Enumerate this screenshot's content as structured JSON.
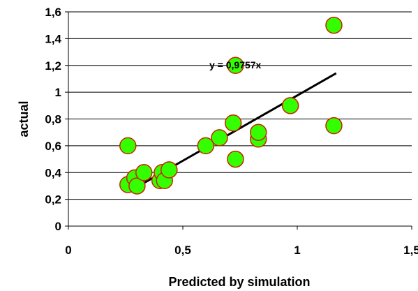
{
  "chart_data": {
    "type": "scatter",
    "xlabel": "Predicted by simulation",
    "ylabel": "actual",
    "xlim": [
      0,
      1.5
    ],
    "ylim": [
      0,
      1.6
    ],
    "x_ticks": [
      "0",
      "0,5",
      "1",
      "1,5"
    ],
    "y_ticks": [
      "0",
      "0,2",
      "0,4",
      "0,6",
      "0,8",
      "1",
      "1,2",
      "1,4",
      "1,6"
    ],
    "grid": "horizontal",
    "points": [
      {
        "x": 0.26,
        "y": 0.6
      },
      {
        "x": 0.26,
        "y": 0.31
      },
      {
        "x": 0.29,
        "y": 0.36
      },
      {
        "x": 0.3,
        "y": 0.3
      },
      {
        "x": 0.33,
        "y": 0.4
      },
      {
        "x": 0.4,
        "y": 0.34
      },
      {
        "x": 0.41,
        "y": 0.4
      },
      {
        "x": 0.42,
        "y": 0.34
      },
      {
        "x": 0.44,
        "y": 0.42
      },
      {
        "x": 0.6,
        "y": 0.6
      },
      {
        "x": 0.66,
        "y": 0.66
      },
      {
        "x": 0.72,
        "y": 0.77
      },
      {
        "x": 0.73,
        "y": 1.2
      },
      {
        "x": 0.73,
        "y": 0.5
      },
      {
        "x": 0.83,
        "y": 0.65
      },
      {
        "x": 0.83,
        "y": 0.7
      },
      {
        "x": 0.97,
        "y": 0.9
      },
      {
        "x": 1.16,
        "y": 1.5
      },
      {
        "x": 1.16,
        "y": 0.75
      }
    ],
    "trendline": {
      "equation": "y = 0,9757x",
      "slope": 0.9757,
      "x_range": [
        0.27,
        1.17
      ],
      "color": "#000000"
    },
    "colors": {
      "marker_fill": "#33ff00",
      "marker_edge": "#cc2200",
      "grid": "#000000"
    }
  }
}
